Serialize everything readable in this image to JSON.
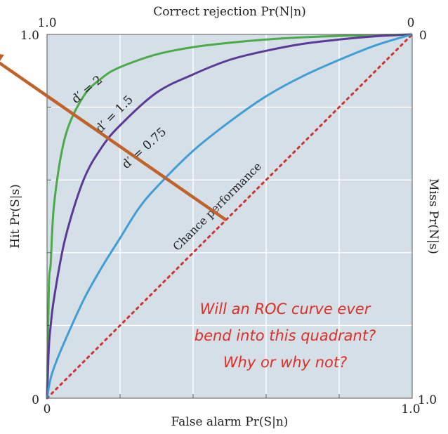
{
  "colors": {
    "plot_background": "#d5dfe7",
    "grid": "#ffffff",
    "chance_line": "#d0322f",
    "arrow": "#c0622a",
    "question_text": "#e02e25",
    "series": [
      "#4caa4a",
      "#5a3a96",
      "#3e9fd7"
    ]
  },
  "chart_data": {
    "type": "line",
    "x_axis": {
      "label": "False alarm Pr(S|n)",
      "range": [
        0,
        1
      ],
      "tick_labels": [
        "0",
        "1.0"
      ]
    },
    "y_axis": {
      "label": "Hit Pr(S|s)",
      "range": [
        0,
        1
      ],
      "tick_labels": [
        "0",
        "1.0"
      ]
    },
    "top_axis": {
      "label": "Correct rejection Pr(N|n)",
      "range": [
        1,
        0
      ],
      "tick_labels": [
        "1.0",
        "0"
      ]
    },
    "right_axis": {
      "label": "Miss Pr(N|s)",
      "range": [
        0,
        1
      ],
      "tick_labels": [
        "0",
        "1.0"
      ]
    },
    "grid": true,
    "gridlines": [
      0.2,
      0.4,
      0.6,
      0.8
    ],
    "series": [
      {
        "name": "d′ = 2",
        "d_prime": 2,
        "points": [
          [
            0,
            0
          ],
          [
            0.005,
            0.31
          ],
          [
            0.01,
            0.37
          ],
          [
            0.02,
            0.54
          ],
          [
            0.05,
            0.72
          ],
          [
            0.1,
            0.83
          ],
          [
            0.15,
            0.88
          ],
          [
            0.2,
            0.91
          ],
          [
            0.3,
            0.945
          ],
          [
            0.4,
            0.965
          ],
          [
            0.5,
            0.977
          ],
          [
            0.6,
            0.986
          ],
          [
            0.7,
            0.992
          ],
          [
            0.8,
            0.996
          ],
          [
            0.9,
            0.998
          ],
          [
            1,
            1
          ]
        ]
      },
      {
        "name": "d′ = 1.5",
        "d_prime": 1.5,
        "points": [
          [
            0,
            0
          ],
          [
            0.005,
            0.14
          ],
          [
            0.01,
            0.2
          ],
          [
            0.02,
            0.28
          ],
          [
            0.05,
            0.44
          ],
          [
            0.1,
            0.6
          ],
          [
            0.15,
            0.69
          ],
          [
            0.2,
            0.75
          ],
          [
            0.3,
            0.84
          ],
          [
            0.4,
            0.89
          ],
          [
            0.5,
            0.93
          ],
          [
            0.6,
            0.955
          ],
          [
            0.7,
            0.974
          ],
          [
            0.8,
            0.986
          ],
          [
            0.9,
            0.995
          ],
          [
            1,
            1
          ]
        ]
      },
      {
        "name": "d′ = 0.75",
        "d_prime": 0.75,
        "points": [
          [
            0,
            0
          ],
          [
            0.01,
            0.055
          ],
          [
            0.025,
            0.1
          ],
          [
            0.05,
            0.16
          ],
          [
            0.1,
            0.27
          ],
          [
            0.15,
            0.36
          ],
          [
            0.2,
            0.44
          ],
          [
            0.25,
            0.52
          ],
          [
            0.3,
            0.58
          ],
          [
            0.4,
            0.68
          ],
          [
            0.5,
            0.76
          ],
          [
            0.6,
            0.83
          ],
          [
            0.7,
            0.885
          ],
          [
            0.8,
            0.93
          ],
          [
            0.9,
            0.97
          ],
          [
            1,
            1
          ]
        ]
      }
    ],
    "chance_line": {
      "label": "Chance performance",
      "points": [
        [
          0,
          0
        ],
        [
          1,
          1
        ]
      ]
    },
    "arrow": {
      "from": [
        0.49,
        0.49
      ],
      "to": [
        -0.17,
        0.95
      ]
    },
    "annotation": {
      "lines": [
        "Will an ROC curve ever",
        "bend into this quadrant?",
        "Why or why not?"
      ]
    }
  }
}
